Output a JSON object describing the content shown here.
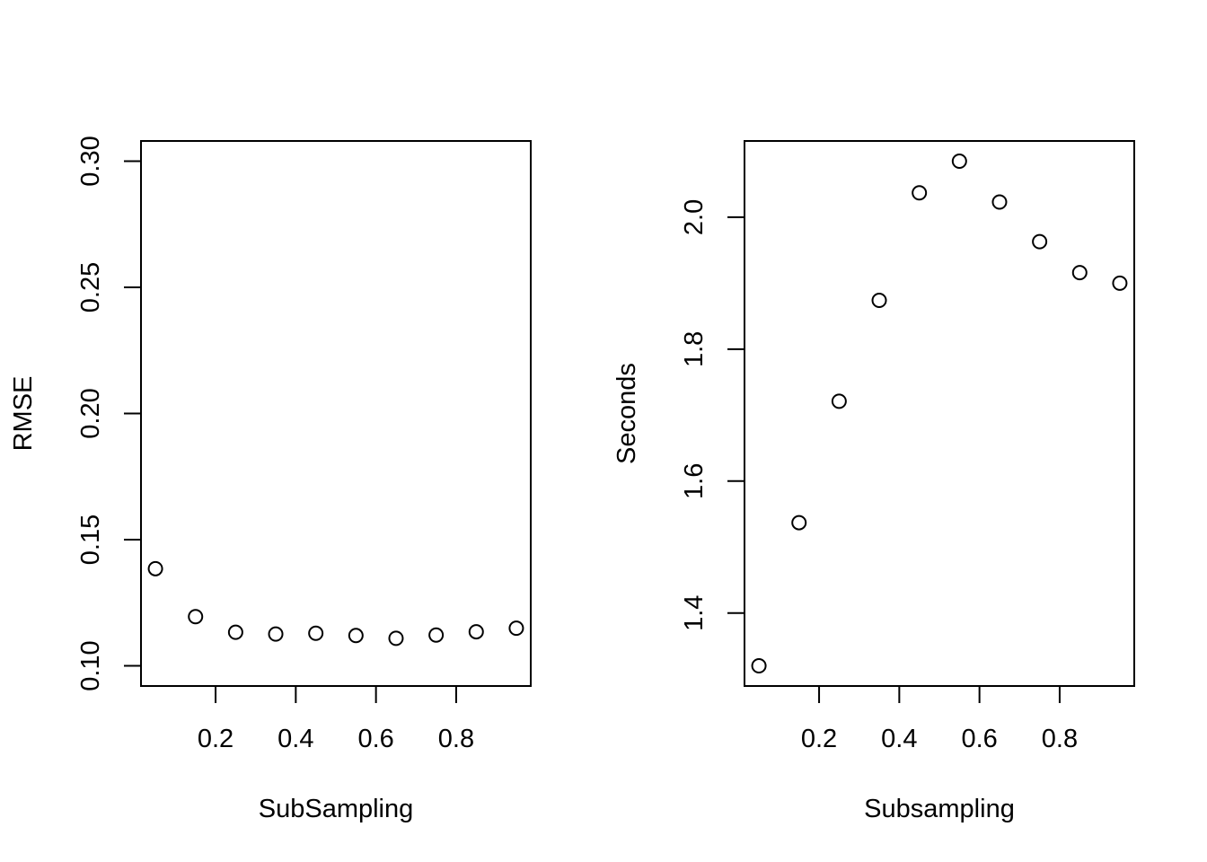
{
  "chart_data": [
    {
      "type": "scatter",
      "title": "",
      "xlabel": "SubSampling",
      "ylabel": "RMSE",
      "xlim": [
        0.05,
        0.95
      ],
      "ylim": [
        0.1,
        0.3
      ],
      "xticks": [
        0.2,
        0.4,
        0.6,
        0.8
      ],
      "xtick_labels": [
        "0.2",
        "0.4",
        "0.6",
        "0.8"
      ],
      "yticks": [
        0.1,
        0.15,
        0.2,
        0.25,
        0.3
      ],
      "ytick_labels": [
        "0.10",
        "0.15",
        "0.20",
        "0.25",
        "0.30"
      ],
      "grid": false,
      "marker": "open-circle",
      "x": [
        0.05,
        0.15,
        0.25,
        0.35,
        0.45,
        0.55,
        0.65,
        0.75,
        0.85,
        0.95
      ],
      "y": [
        0.1385,
        0.1195,
        0.1133,
        0.1126,
        0.1129,
        0.112,
        0.1109,
        0.1122,
        0.1135,
        0.1149
      ]
    },
    {
      "type": "scatter",
      "title": "",
      "xlabel": "Subsampling",
      "ylabel": "Seconds",
      "xlim": [
        0.05,
        0.95
      ],
      "ylim": [
        1.32,
        2.085
      ],
      "xticks": [
        0.2,
        0.4,
        0.6,
        0.8
      ],
      "xtick_labels": [
        "0.2",
        "0.4",
        "0.6",
        "0.8"
      ],
      "yticks": [
        1.4,
        1.6,
        1.8,
        2.0
      ],
      "ytick_labels": [
        "1.4",
        "1.6",
        "1.8",
        "2.0"
      ],
      "grid": false,
      "marker": "open-circle",
      "x": [
        0.05,
        0.15,
        0.25,
        0.35,
        0.45,
        0.55,
        0.65,
        0.75,
        0.85,
        0.95
      ],
      "y": [
        1.32,
        1.537,
        1.721,
        1.874,
        2.037,
        2.085,
        2.023,
        1.963,
        1.916,
        1.9
      ]
    }
  ]
}
